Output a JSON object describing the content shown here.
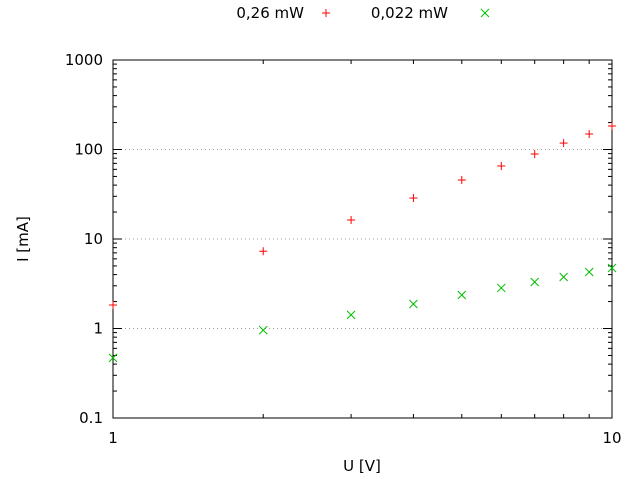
{
  "chart_data": {
    "type": "scatter",
    "xlabel": "U [V]",
    "ylabel": "I [mA]",
    "xscale": "log",
    "yscale": "log",
    "xlim": [
      1,
      10
    ],
    "ylim": [
      0.1,
      1000
    ],
    "xticks": [
      {
        "value": 1,
        "label": "1"
      },
      {
        "value": 10,
        "label": "10"
      }
    ],
    "yticks": [
      {
        "value": 0.1,
        "label": "0.1"
      },
      {
        "value": 1,
        "label": "1"
      },
      {
        "value": 10,
        "label": "10"
      },
      {
        "value": 100,
        "label": "100"
      },
      {
        "value": 1000,
        "label": "1000"
      }
    ],
    "grid": "horizontal dotted",
    "legend": "top",
    "series": [
      {
        "name": "0,26 mW",
        "marker": "plus",
        "color": "#ff0000",
        "x": [
          1,
          2,
          3,
          4,
          5,
          6,
          7,
          8,
          9,
          10
        ],
        "y": [
          1.83,
          7.3,
          16.3,
          28.7,
          45.6,
          65.4,
          89,
          118,
          149,
          183
        ]
      },
      {
        "name": "0,022 mW",
        "marker": "cross",
        "color": "#00c000",
        "x": [
          1,
          2,
          3,
          4,
          5,
          6,
          7,
          8,
          9,
          10
        ],
        "y": [
          0.47,
          0.96,
          1.42,
          1.88,
          2.37,
          2.84,
          3.31,
          3.76,
          4.28,
          4.74
        ]
      }
    ]
  }
}
